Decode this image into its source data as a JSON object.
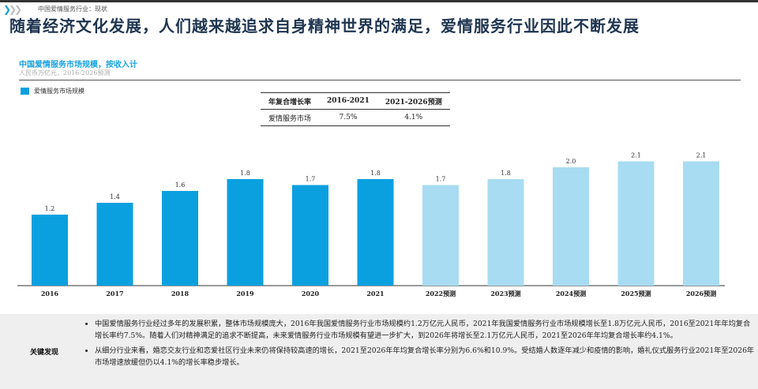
{
  "header": {
    "breadcrumb": "中国爱情服务行业：现状",
    "title": "随着经济文化发展，人们越来越追求自身精神世界的满足，爱情服务行业因此不断发展"
  },
  "colors": {
    "actual": "#0aa0e0",
    "forecast": "#a8dcf2"
  },
  "cagr_table": {
    "headers": [
      "年复合增长率",
      "2016-2021",
      "2021-2026预测"
    ],
    "row": [
      "爱情服务市场",
      "7.5%",
      "4.1%"
    ]
  },
  "chart_data": {
    "type": "bar",
    "title": "中国爱情服务市场规模，按收入计",
    "subtitle": "人民币万亿元，2016-2026预测",
    "legend": [
      "爱情服务市场规模"
    ],
    "categories": [
      "2016",
      "2017",
      "2018",
      "2019",
      "2020",
      "2021",
      "2022预测",
      "2023预测",
      "2024预测",
      "2025预测",
      "2026预测"
    ],
    "values": [
      1.2,
      1.4,
      1.6,
      1.8,
      1.7,
      1.8,
      1.7,
      1.8,
      2.0,
      2.1,
      2.1
    ],
    "labels": [
      "1.2",
      "1.4",
      "1.6",
      "1.8",
      "1.7",
      "1.8",
      "1.7",
      "1.8",
      "2.0",
      "2.1",
      "2.1"
    ],
    "forecast_from_index": 6,
    "ylim": [
      0,
      2.3
    ],
    "xlabel": "",
    "ylabel": ""
  },
  "findings": {
    "label": "关键发现",
    "bullets": [
      "中国爱情服务行业经过多年的发展积累，整体市场规模庞大，2016年我国爱情服务行业市场规模约1.2万亿元人民币，2021年我国爱情服务行业市场规模增长至1.8万亿元人民币，2016至2021年年均复合增长率约7.5%。随着人们对精神满足的追求不断提高，未来爱情服务行业市场规模有望进一步扩大，到2026年将增长至2.1万亿元人民币，2021至2026年年均复合增长率约4.1%。",
      "从细分行业来看，婚恋交友行业和恋爱社区行业未来仍将保持较高速的增长，2021至2026年年均复合增长率分别为6.6%和10.9%。受结婚人数逐年减少和疫情的影响，婚礼仪式服务行业2021年至2026年市场增速放缓但仍以4.1%的增长率稳步增长。"
    ]
  }
}
